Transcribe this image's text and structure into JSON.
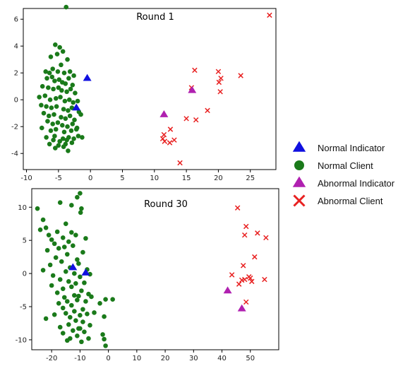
{
  "chart_data": [
    {
      "type": "scatter",
      "title": "Round 1",
      "xlabel": "",
      "ylabel": "",
      "xlim": [
        -10.5,
        29
      ],
      "ylim": [
        -5.2,
        6.8
      ],
      "xticks": [
        -10,
        -5,
        0,
        5,
        10,
        15,
        20,
        25
      ],
      "yticks": [
        -4,
        -2,
        0,
        2,
        4,
        6
      ],
      "grid": false,
      "series": [
        {
          "name": "Normal Client",
          "marker": "circle",
          "color": "#1a7a1a",
          "x": [
            -3.8,
            -5.5,
            -4.8,
            -4.3,
            -6.2,
            -5.2,
            -3.6,
            -4.6,
            -7.0,
            -6.4,
            -5.9,
            -5.1,
            -4.1,
            -3.2,
            -2.6,
            -6.8,
            -6.0,
            -5.6,
            -4.9,
            -4.4,
            -3.9,
            -3.4,
            -2.8,
            -7.5,
            -6.6,
            -5.8,
            -5.0,
            -4.5,
            -3.7,
            -3.1,
            -2.4,
            -8.0,
            -7.1,
            -6.3,
            -5.4,
            -4.7,
            -4.0,
            -3.3,
            -2.7,
            -2.0,
            -7.7,
            -6.9,
            -6.1,
            -5.3,
            -4.2,
            -3.5,
            -2.9,
            -1.8,
            -7.3,
            -6.5,
            -5.7,
            -4.6,
            -3.9,
            -3.2,
            -2.5,
            -1.5,
            -6.7,
            -5.9,
            -5.1,
            -4.4,
            -3.6,
            -2.8,
            -2.1,
            -7.6,
            -6.2,
            -5.4,
            -4.1,
            -3.0,
            -2.2,
            -6.9,
            -5.6,
            -4.3,
            -3.4,
            -1.9,
            -5.8,
            -4.8,
            -3.7,
            -2.6,
            -6.4,
            -5.0,
            -3.9,
            -2.9,
            -5.5,
            -4.2,
            -3.5,
            -1.3
          ],
          "y": [
            6.9,
            4.1,
            3.9,
            3.6,
            3.2,
            3.4,
            3.0,
            2.6,
            2.1,
            2.0,
            2.3,
            2.1,
            2.0,
            2.1,
            1.8,
            1.6,
            1.7,
            1.4,
            1.5,
            1.3,
            1.2,
            1.6,
            1.1,
            1.0,
            0.9,
            0.8,
            0.9,
            0.7,
            0.6,
            0.8,
            0.5,
            0.2,
            0.3,
            0.0,
            0.1,
            0.2,
            -0.1,
            0.0,
            -0.2,
            -0.1,
            -0.4,
            -0.5,
            -0.6,
            -0.5,
            -0.7,
            -0.8,
            -0.6,
            -0.9,
            -1.0,
            -1.2,
            -1.1,
            -1.3,
            -1.4,
            -1.2,
            -1.5,
            -1.1,
            -1.6,
            -1.8,
            -1.7,
            -1.9,
            -2.0,
            -1.8,
            -2.1,
            -2.1,
            -2.3,
            -2.2,
            -2.4,
            -2.3,
            -2.2,
            -2.8,
            -2.7,
            -2.9,
            -2.8,
            -2.7,
            -3.0,
            -3.1,
            -3.0,
            -2.9,
            -3.3,
            -3.4,
            -3.3,
            -3.2,
            -3.6,
            -3.5,
            -3.8,
            -2.8
          ]
        },
        {
          "name": "Normal Indicator",
          "marker": "triangle",
          "color": "#1010e0",
          "x": [
            -0.5,
            -2.2
          ],
          "y": [
            1.6,
            -0.6
          ]
        },
        {
          "name": "Abnormal Client",
          "marker": "x",
          "color": "#e82020",
          "x": [
            28.0,
            16.3,
            20.0,
            20.4,
            23.5,
            20.1,
            15.8,
            20.3,
            18.3,
            15.0,
            16.5,
            11.5,
            12.5,
            11.3,
            11.6,
            13.1,
            12.4,
            14.0
          ],
          "y": [
            6.3,
            2.2,
            2.1,
            1.6,
            1.8,
            1.3,
            0.9,
            0.6,
            -0.8,
            -1.4,
            -1.5,
            -2.6,
            -2.2,
            -2.9,
            -3.1,
            -3.0,
            -3.2,
            -4.7
          ]
        },
        {
          "name": "Abnormal Indicator",
          "marker": "triangle",
          "color": "#b020b0",
          "x": [
            15.9,
            11.5
          ],
          "y": [
            0.7,
            -1.1
          ]
        }
      ]
    },
    {
      "type": "scatter",
      "title": "Round 30",
      "xlabel": "",
      "ylabel": "",
      "xlim": [
        -27,
        60
      ],
      "ylim": [
        -11.5,
        12.8
      ],
      "xticks": [
        -20,
        -10,
        0,
        10,
        20,
        30,
        40,
        50
      ],
      "yticks": [
        -10,
        -5,
        0,
        5,
        10
      ],
      "grid": false,
      "series": [
        {
          "name": "Normal Client",
          "marker": "circle",
          "color": "#1a7a1a",
          "x": [
            -10.0,
            -11.0,
            -17.0,
            -9.5,
            -13.0,
            -25.0,
            -23.0,
            -9.8,
            -15.0,
            -22.0,
            -18.0,
            -24.0,
            -21.0,
            -13.0,
            -11.5,
            -16.0,
            -20.0,
            -14.0,
            -8.0,
            -19.0,
            -12.5,
            -17.5,
            -15.5,
            -21.5,
            -9.0,
            -14.5,
            -18.5,
            -11.0,
            -16.5,
            -10.5,
            -20.5,
            -7.5,
            -13.5,
            -15.0,
            -23.0,
            -12.0,
            -19.5,
            -6.5,
            -10.0,
            -17.0,
            -14.0,
            -11.5,
            -20.0,
            -8.5,
            -16.0,
            -13.0,
            -9.5,
            -18.0,
            -7.0,
            -12.0,
            -15.5,
            -10.5,
            -6.0,
            -14.5,
            -17.5,
            -11.0,
            -8.0,
            -3.0,
            -13.0,
            -16.0,
            -1.0,
            -9.0,
            -12.0,
            -15.0,
            1.5,
            -5.0,
            -10.0,
            -13.5,
            -7.5,
            -1.5,
            -19.0,
            -11.5,
            -9.0,
            -22.0,
            -14.0,
            -6.5,
            -17.0,
            -10.0,
            -12.5,
            -8.5,
            -16.0,
            -2.0,
            -11.0,
            -13.5,
            -1.5,
            -14.5,
            -9.5,
            -1.0,
            -7.0,
            -10.5
          ],
          "y": [
            12.1,
            11.5,
            10.7,
            9.8,
            10.3,
            9.8,
            8.1,
            9.2,
            7.5,
            6.9,
            6.3,
            6.6,
            5.8,
            6.2,
            5.8,
            5.4,
            5.1,
            4.8,
            5.3,
            4.5,
            4.2,
            3.8,
            4.0,
            3.5,
            3.2,
            2.9,
            2.4,
            2.1,
            1.8,
            1.5,
            1.3,
            0.6,
            0.9,
            0.3,
            0.5,
            0.0,
            -0.3,
            -0.1,
            -0.5,
            -0.9,
            -1.2,
            -1.5,
            -1.8,
            -1.4,
            -2.3,
            -2.0,
            -2.6,
            -2.9,
            -3.1,
            -3.3,
            -3.6,
            -3.4,
            -3.5,
            -4.2,
            -4.5,
            -4.0,
            -4.2,
            -4.5,
            -4.8,
            -5.2,
            -3.9,
            -5.4,
            -5.7,
            -6.0,
            -3.9,
            -5.9,
            -6.3,
            -6.6,
            -6.1,
            -6.5,
            -6.2,
            -7.1,
            -7.3,
            -6.8,
            -7.7,
            -7.8,
            -8.1,
            -8.3,
            -8.6,
            -8.8,
            -9.0,
            -9.2,
            -9.4,
            -9.8,
            -9.9,
            -10.1,
            -10.3,
            -10.9,
            -9.8,
            -8.3
          ]
        },
        {
          "name": "Normal Indicator",
          "marker": "triangle",
          "color": "#1010e0",
          "x": [
            -12.5,
            -8.0
          ],
          "y": [
            0.9,
            0.1
          ]
        },
        {
          "name": "Abnormal Client",
          "marker": "x",
          "color": "#e82020",
          "x": [
            45.5,
            48.5,
            52.5,
            55.5,
            48.0,
            51.5,
            47.5,
            43.5,
            49.5,
            48.0,
            50.0,
            50.5,
            47.0,
            46.0,
            55.0,
            48.5
          ],
          "y": [
            9.9,
            7.1,
            6.1,
            5.4,
            5.8,
            2.5,
            1.2,
            -0.2,
            -0.5,
            -0.9,
            -0.7,
            -1.2,
            -1.0,
            -1.6,
            -0.9,
            -4.3
          ]
        },
        {
          "name": "Abnormal Indicator",
          "marker": "triangle",
          "color": "#b020b0",
          "x": [
            42.0,
            47.0
          ],
          "y": [
            -2.6,
            -5.3
          ]
        }
      ]
    }
  ],
  "legend": {
    "placement": "right",
    "entries": [
      {
        "label": "Normal Indicator",
        "marker": "triangle",
        "color": "#1010e0"
      },
      {
        "label": "Normal Client",
        "marker": "circle",
        "color": "#1a7a1a"
      },
      {
        "label": "Abnormal Indicator",
        "marker": "triangle",
        "color": "#b020b0"
      },
      {
        "label": "Abnormal Client",
        "marker": "x",
        "color": "#e82020"
      }
    ]
  }
}
